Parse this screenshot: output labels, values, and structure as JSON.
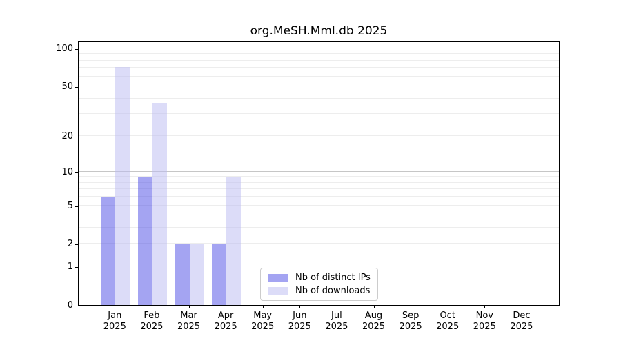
{
  "title": "org.MeSH.Mml.db 2025",
  "chart_data": {
    "type": "bar",
    "title": "org.MeSH.Mml.db 2025",
    "categories": [
      "Jan",
      "Feb",
      "Mar",
      "Apr",
      "May",
      "Jun",
      "Jul",
      "Aug",
      "Sep",
      "Oct",
      "Nov",
      "Dec"
    ],
    "year_label": "2025",
    "series": [
      {
        "name": "Nb of distinct IPs",
        "color": "#a4a4f2",
        "color_rgba": "rgba(73,73,229,0.5)",
        "values": [
          6,
          9,
          2,
          2,
          0,
          0,
          0,
          0,
          0,
          0,
          0,
          0
        ]
      },
      {
        "name": "Nb of downloads",
        "color": "#dcdcf8",
        "color_rgba": "rgba(185,185,241,0.5)",
        "values": [
          71,
          37,
          2,
          9,
          0,
          0,
          0,
          0,
          0,
          0,
          0,
          0
        ]
      }
    ],
    "y_axis": {
      "scale": "log1p",
      "ticks": [
        0,
        1,
        2,
        5,
        10,
        20,
        50,
        100
      ],
      "ylim": [
        0,
        100
      ]
    },
    "grid": {
      "on": true,
      "major_ticks": [
        1,
        10,
        100
      ],
      "minor_ticks": [
        2,
        3,
        4,
        5,
        6,
        7,
        8,
        9,
        20,
        30,
        40,
        50,
        60,
        70,
        80,
        90
      ],
      "major_color": "#c6c6c6",
      "minor_color": "#ededed"
    },
    "legend": {
      "position": "bottom-center",
      "border_color": "#cccccc"
    },
    "xlabel": "",
    "ylabel": ""
  }
}
